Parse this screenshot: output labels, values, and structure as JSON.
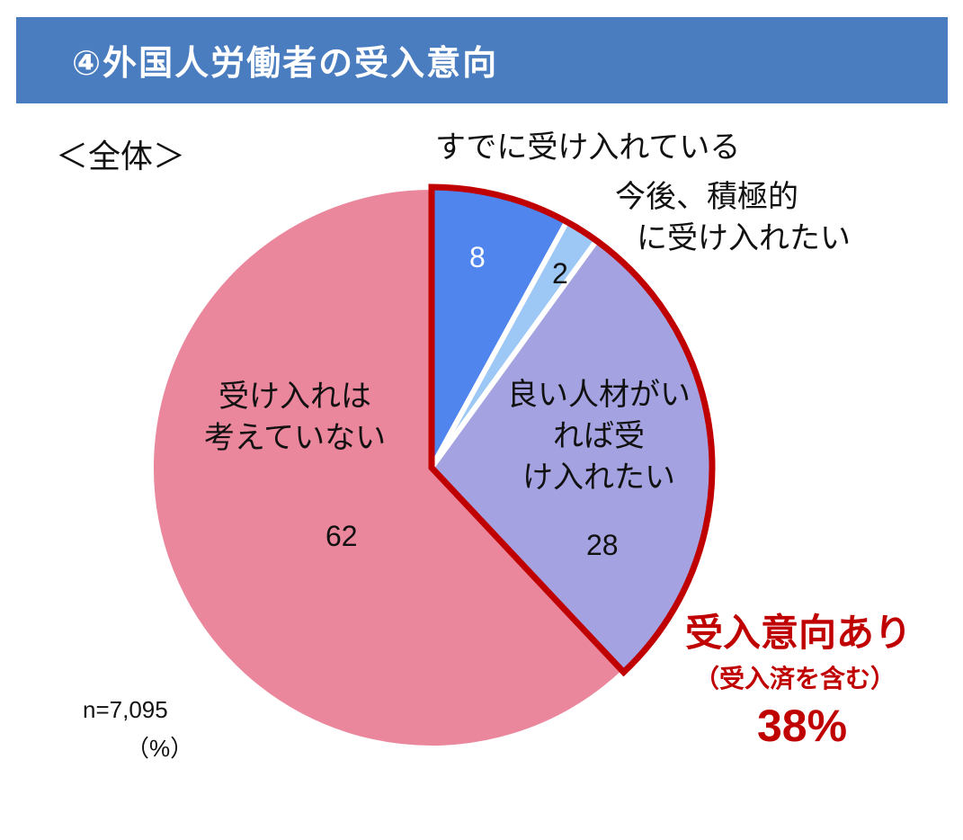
{
  "title": "④外国人労働者の受入意向",
  "scope_label": "＜全体＞",
  "sample_size": "n=7,095",
  "unit": "（%）",
  "colors": {
    "banner": "#4a7dbf",
    "highlight_border": "#c00000",
    "callout_text": "#c00000"
  },
  "chart_data": {
    "type": "pie",
    "start": "12 o'clock",
    "direction": "clockwise",
    "slices": [
      {
        "label": "すでに受け入れている",
        "value": 8,
        "color": "#5085ee",
        "value_color": "#ffffff"
      },
      {
        "label": "今後、積極的に受け入れたい",
        "value": 2,
        "color": "#9dc8f6",
        "value_color": "#111111"
      },
      {
        "label": "良い人材がいれば受け入れたい",
        "value": 28,
        "color": "#a4a2e0",
        "value_color": "#111111"
      },
      {
        "label": "受け入れは考えていない",
        "value": 62,
        "color": "#eb879c",
        "value_color": "#111111"
      }
    ],
    "highlight": {
      "slices": [
        0,
        1,
        2
      ],
      "title": "受入意向あり",
      "subtitle": "（受入済を含む）",
      "value_text": "38%"
    }
  }
}
